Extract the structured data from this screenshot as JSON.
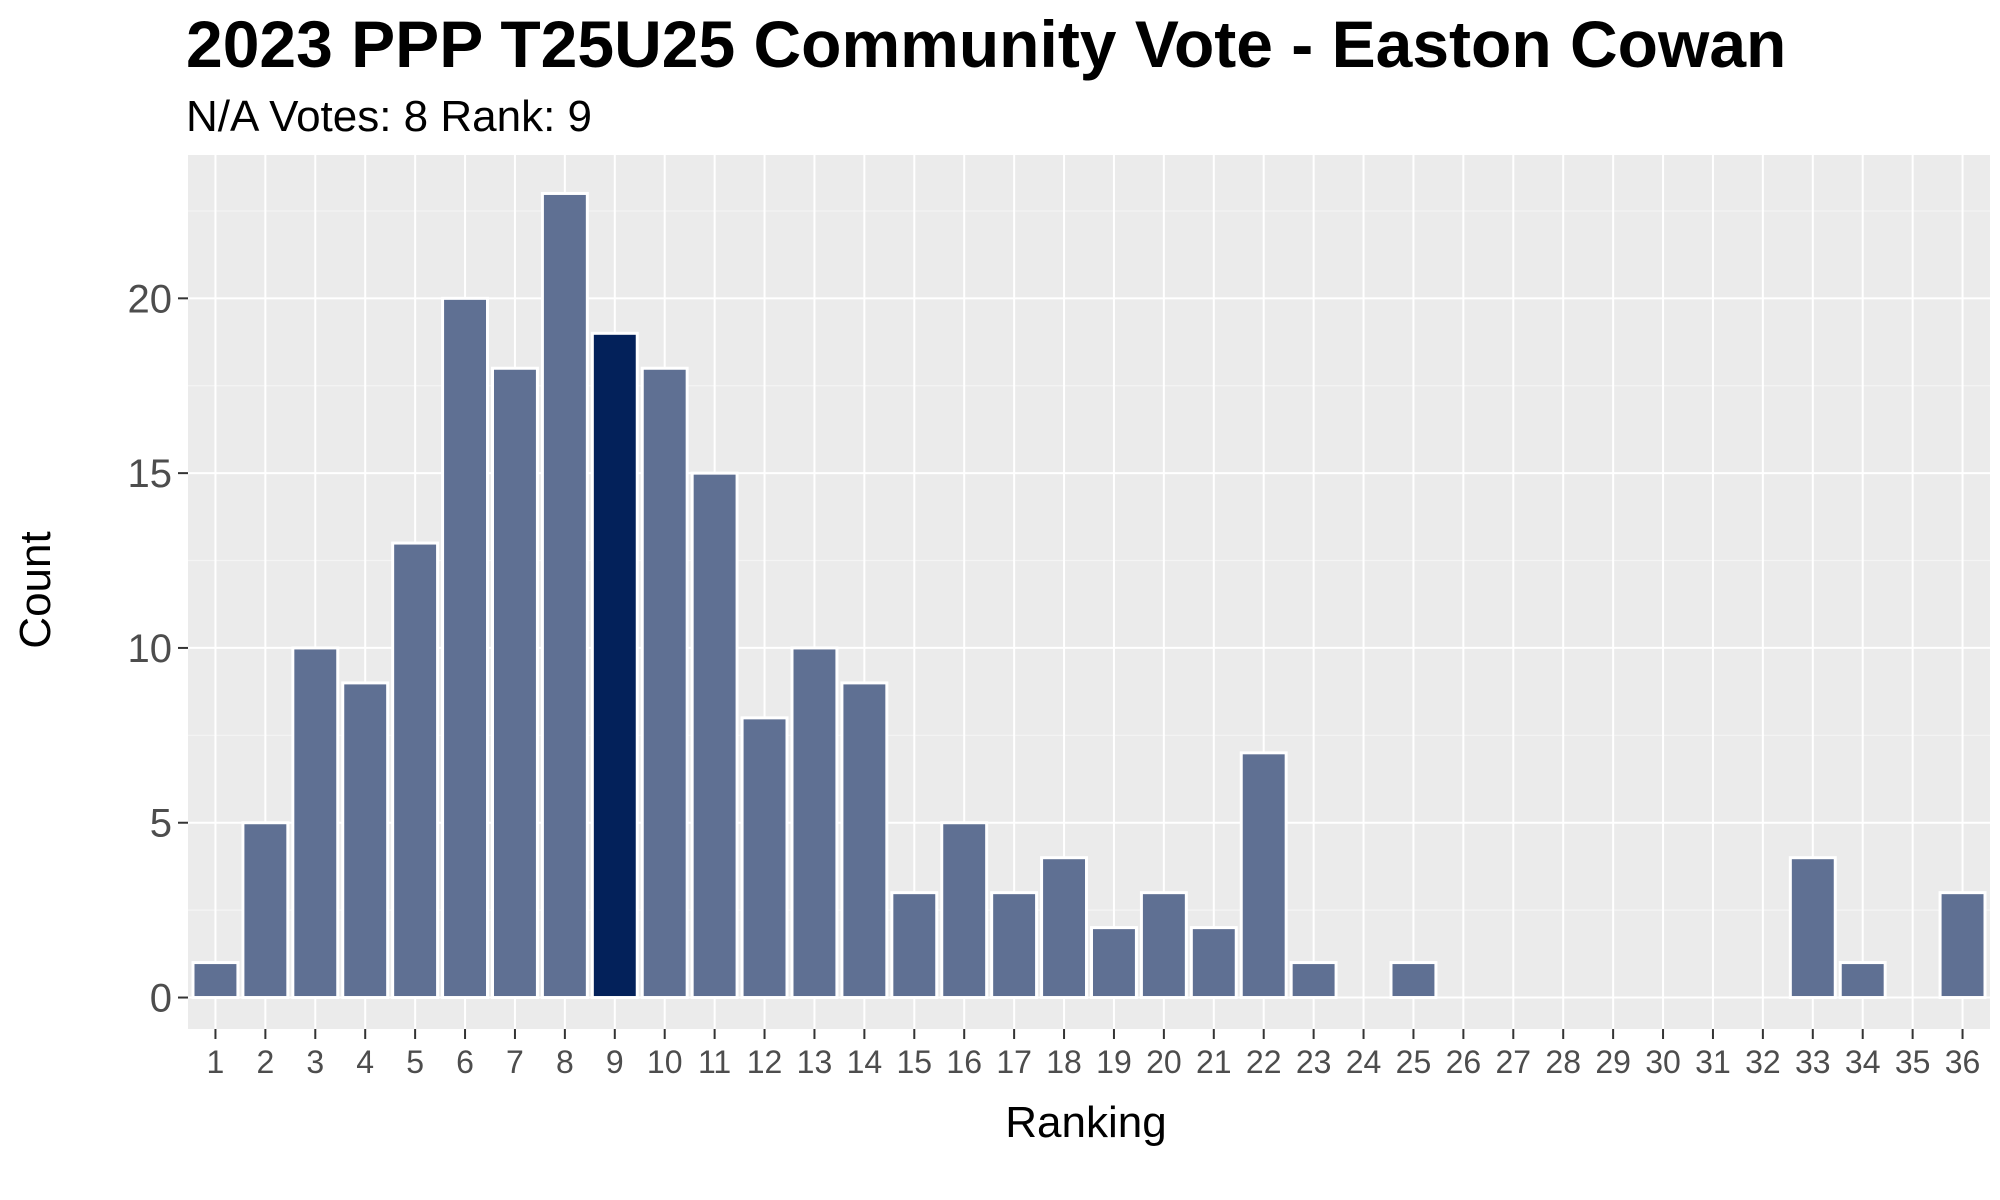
{
  "chart_data": {
    "type": "bar",
    "title": "2023 PPP T25U25 Community Vote - Easton Cowan",
    "subtitle": "N/A Votes: 8  Rank: 9",
    "xlabel": "Ranking",
    "ylabel": "Count",
    "categories": [
      "1",
      "2",
      "3",
      "4",
      "5",
      "6",
      "7",
      "8",
      "9",
      "10",
      "11",
      "12",
      "13",
      "14",
      "15",
      "16",
      "17",
      "18",
      "19",
      "20",
      "21",
      "22",
      "23",
      "24",
      "25",
      "26",
      "27",
      "28",
      "29",
      "30",
      "31",
      "32",
      "33",
      "34",
      "35",
      "36"
    ],
    "values": [
      1,
      5,
      10,
      9,
      13,
      20,
      18,
      23,
      19,
      18,
      15,
      8,
      10,
      9,
      3,
      5,
      3,
      4,
      2,
      3,
      2,
      7,
      1,
      0,
      1,
      0,
      0,
      0,
      0,
      0,
      0,
      0,
      4,
      1,
      0,
      3
    ],
    "highlight_category": "9",
    "ylim": [
      -0.9,
      24.1
    ],
    "yticks": [
      0,
      5,
      10,
      15,
      20
    ],
    "grid": true,
    "legend": "none",
    "colors": {
      "bar": "#5f7093",
      "highlight": "#03215a",
      "panel": "#ebebeb",
      "grid_major": "#ffffff",
      "grid_minor": "#f4f4f4",
      "tick_text": "#4d4d4d",
      "tick_mark": "#333333"
    }
  }
}
